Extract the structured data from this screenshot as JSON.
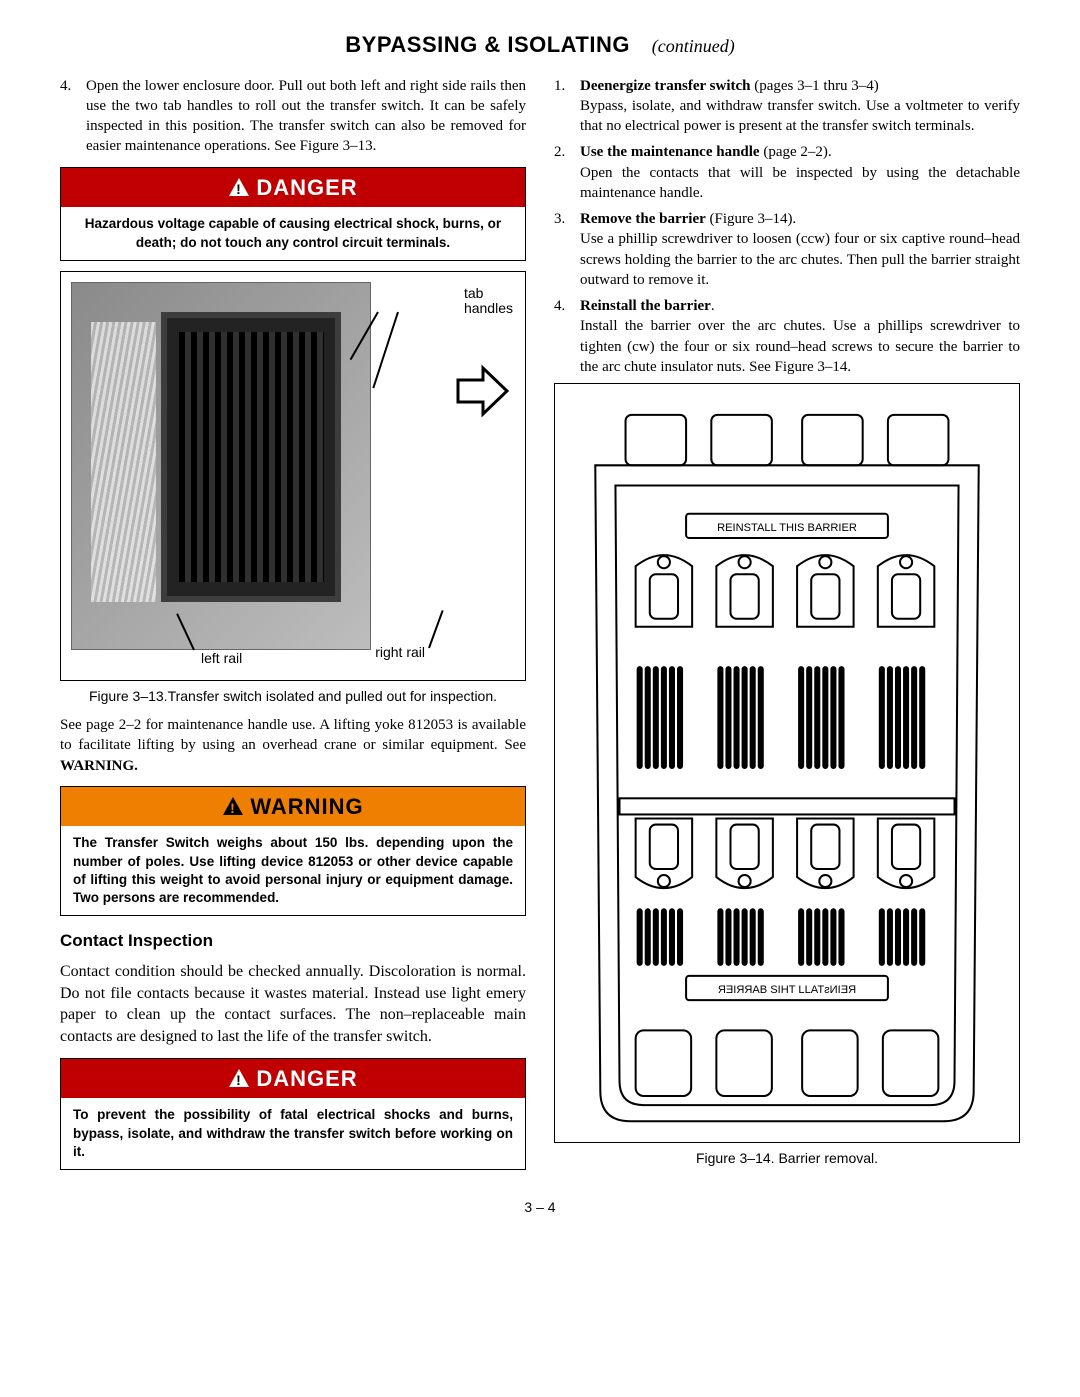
{
  "title": {
    "main": "BYPASSING & ISOLATING",
    "continued": "(continued)"
  },
  "left": {
    "step4": {
      "num": "4.",
      "text": "Open the lower enclosure door. Pull out both left and right side rails then use the two tab handles to roll out the transfer switch. It can be safely inspected in this position. The transfer switch can also be removed for easier maintenance operations. See Figure 3–13."
    },
    "danger1": {
      "header": "DANGER",
      "body": "Hazardous voltage capable of causing electrical shock, burns, or death; do not touch any control circuit terminals."
    },
    "fig13": {
      "tab": "tab\nhandles",
      "left_rail": "left rail",
      "right_rail": "right rail",
      "caption": "Figure 3–13.Transfer switch isolated and pulled out for inspection."
    },
    "after_fig": "See page 2–2 for maintenance handle use. A lifting yoke 812053 is available to facilitate lifting by using an overhead crane or similar equipment. See ",
    "after_fig_bold": "WARNING.",
    "warning": {
      "header": "WARNING",
      "body": "The Transfer Switch weighs about 150 lbs. depending upon the number of poles. Use lifting device 812053 or other device capable of lifting this weight to avoid personal injury or equipment damage. Two persons are recommended."
    },
    "subhead": "Contact Inspection",
    "contact_para": "Contact condition should be checked annually. Discoloration is normal. Do not file contacts because it wastes material. Instead use light emery paper to clean up the contact surfaces. The non–replaceable main contacts are designed to last the life of the transfer switch.",
    "danger2": {
      "header": "DANGER",
      "body": "To prevent the possibility of fatal electrical shocks and burns, bypass, isolate, and withdraw the transfer switch before working on it."
    }
  },
  "right": {
    "steps": [
      {
        "num": "1.",
        "lead": "Deenergize transfer switch",
        "lead_after": " (pages 3–1 thru 3–4)",
        "body": "Bypass, isolate, and withdraw transfer switch. Use a voltmeter to verify that no electrical power is present at the transfer switch terminals."
      },
      {
        "num": "2.",
        "lead": "Use the maintenance handle",
        "lead_after": " (page 2–2).",
        "body": "Open the contacts that will be inspected by using the detachable maintenance handle."
      },
      {
        "num": "3.",
        "lead": "Remove the barrier",
        "lead_after": " (Figure 3–14).",
        "body": "Use a phillip screwdriver to loosen (ccw) four or six captive round–head screws holding the barrier to the arc chutes. Then pull the barrier straight outward to remove it."
      },
      {
        "num": "4.",
        "lead": "Reinstall the barrier",
        "lead_after": ".",
        "body": "Install the barrier over the arc chutes. Use a phillips screwdriver to tighten (cw) the four or six round–head screws to secure the barrier to the arc chute insulator nuts. See Figure 3–14."
      }
    ],
    "fig14": {
      "label_top": "REINSTALL THIS BARRIER",
      "label_bottom_rev": "ЯƎIЯЯAB SIHT LLATƨИIƎЯ",
      "caption": "Figure 3–14. Barrier removal."
    }
  },
  "page_num": "3 – 4",
  "colors": {
    "danger": "#c00000",
    "warning": "#ef7f00"
  }
}
